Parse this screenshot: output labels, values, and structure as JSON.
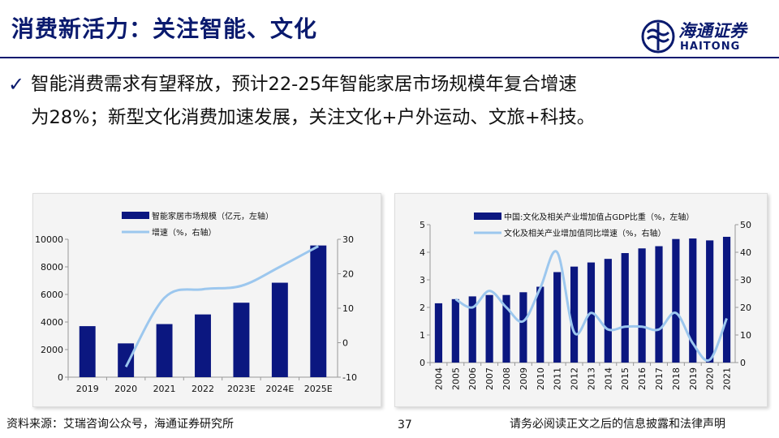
{
  "header": {
    "title": "消费新活力：关注智能、文化",
    "logo_cn": "海通证券",
    "logo_en": "HAITONG"
  },
  "bullet": {
    "line1": "智能消费需求有望释放，预计22-25年智能家居市场规模年复合增速",
    "line2": "为28%；新型文化消费加速发展，关注文化+户外运动、文旅+科技。"
  },
  "footer": {
    "source": "资料来源：艾瑞咨询公众号，海通证券研究所",
    "page": "37",
    "disclaimer": "请务必阅读正文之后的信息披露和法律声明"
  },
  "colors": {
    "navy": "#0a1a6e",
    "bar": "#0b1780",
    "line": "#9cc7ee"
  },
  "chart_data": [
    {
      "type": "bar+line",
      "categories": [
        "2019",
        "2020",
        "2021",
        "2022",
        "2023E",
        "2024E",
        "2025E"
      ],
      "series": [
        {
          "name": "智能家居市场规模（亿元，左轴）",
          "type": "bar",
          "axis": "left",
          "values": [
            3700,
            2450,
            3850,
            4550,
            5400,
            6850,
            9550
          ]
        },
        {
          "name": "增速（%，右轴）",
          "type": "line",
          "axis": "right",
          "values": [
            null,
            -7,
            13,
            15.5,
            16.5,
            22,
            28
          ]
        }
      ],
      "y_left": {
        "min": 0,
        "max": 10000,
        "ticks": [
          "0",
          "2000",
          "4000",
          "6000",
          "8000",
          "10000"
        ]
      },
      "y_right": {
        "min": -10,
        "max": 30,
        "ticks": [
          "-10",
          "0",
          "10",
          "20",
          "30"
        ]
      }
    },
    {
      "type": "bar+line",
      "categories": [
        "2004",
        "2005",
        "2006",
        "2007",
        "2008",
        "2009",
        "2010",
        "2011",
        "2012",
        "2013",
        "2014",
        "2015",
        "2016",
        "2017",
        "2018",
        "2019",
        "2020",
        "2021"
      ],
      "series": [
        {
          "name": "中国:文化及相关产业增加值占GDP比重（%，左轴）",
          "type": "bar",
          "axis": "left",
          "values": [
            2.15,
            2.3,
            2.4,
            2.45,
            2.45,
            2.55,
            2.75,
            3.28,
            3.48,
            3.63,
            3.76,
            3.97,
            4.14,
            4.22,
            4.48,
            4.5,
            4.43,
            4.56
          ]
        },
        {
          "name": "文化及相关产业增加值同比增速（%，右轴）",
          "type": "line",
          "axis": "right",
          "values": [
            null,
            23,
            20,
            26,
            20,
            15,
            27,
            40,
            11,
            18,
            12,
            13,
            13,
            12,
            18,
            7,
            1,
            16
          ]
        }
      ],
      "y_left": {
        "min": 0,
        "max": 5,
        "ticks": [
          "0",
          "1",
          "2",
          "3",
          "4",
          "5"
        ]
      },
      "y_right": {
        "min": 0,
        "max": 50,
        "ticks": [
          "0",
          "10",
          "20",
          "30",
          "40",
          "50"
        ]
      }
    }
  ]
}
